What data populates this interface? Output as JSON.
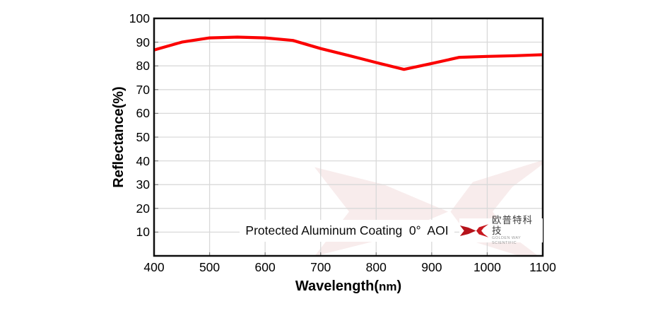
{
  "chart_data": {
    "type": "line",
    "title": "",
    "xlabel": "Wavelength(nm)",
    "xlabel_parts": {
      "main": "Wavelength(",
      "unit": "nm",
      "close": ")"
    },
    "ylabel": "Reflectance(%)",
    "xlim": [
      400,
      1100
    ],
    "ylim": [
      0,
      100
    ],
    "x_ticks": [
      400,
      500,
      600,
      700,
      800,
      900,
      1000,
      1100
    ],
    "y_ticks": [
      10,
      20,
      30,
      40,
      50,
      60,
      70,
      80,
      90,
      100
    ],
    "grid": true,
    "legend": "none",
    "annotation": "Protected Aluminum Coating  0°  AOI",
    "series": [
      {
        "name": "Protected Aluminum Coating 0° AOI",
        "color": "#fb0000",
        "x": [
          400,
          450,
          500,
          550,
          600,
          650,
          700,
          750,
          800,
          850,
          900,
          950,
          1000,
          1050,
          1100
        ],
        "values": [
          86.7,
          90.0,
          91.8,
          92.1,
          91.8,
          90.7,
          87.3,
          84.4,
          81.4,
          78.5,
          81.0,
          83.6,
          84.0,
          84.3,
          84.7
        ]
      }
    ]
  },
  "branding": {
    "logo_text_cn": "欧普特科技",
    "logo_text_en": "GOLDEN WAY SCIENTIFIC",
    "logo_color_dark": "#b5121a",
    "logo_color": "#c8181f",
    "watermark_color": "#f8ecec"
  },
  "colors": {
    "grid": "#d9d9d9",
    "axis": "#0d0d0d",
    "tick": "#7f7f7f",
    "text": "#000000"
  }
}
